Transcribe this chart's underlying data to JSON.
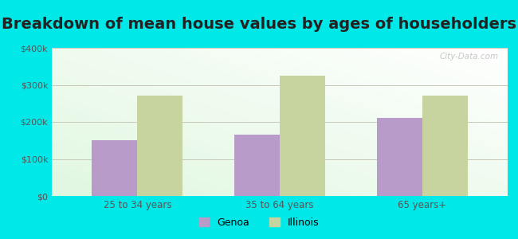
{
  "title": "Breakdown of mean house values by ages of householders",
  "categories": [
    "25 to 34 years",
    "35 to 64 years",
    "65 years+"
  ],
  "genoa_values": [
    150000,
    165000,
    210000
  ],
  "illinois_values": [
    272000,
    325000,
    270000
  ],
  "ylim": [
    0,
    400000
  ],
  "yticks": [
    0,
    100000,
    200000,
    300000,
    400000
  ],
  "ytick_labels": [
    "$0",
    "$100k",
    "$200k",
    "$300k",
    "$400k"
  ],
  "genoa_color": "#b89bc8",
  "illinois_color": "#c8d4a0",
  "background_outer": "#00e8e8",
  "grid_color": "#c8c8b8",
  "title_fontsize": 14,
  "legend_labels": [
    "Genoa",
    "Illinois"
  ],
  "bar_width": 0.32,
  "watermark": "City-Data.com"
}
